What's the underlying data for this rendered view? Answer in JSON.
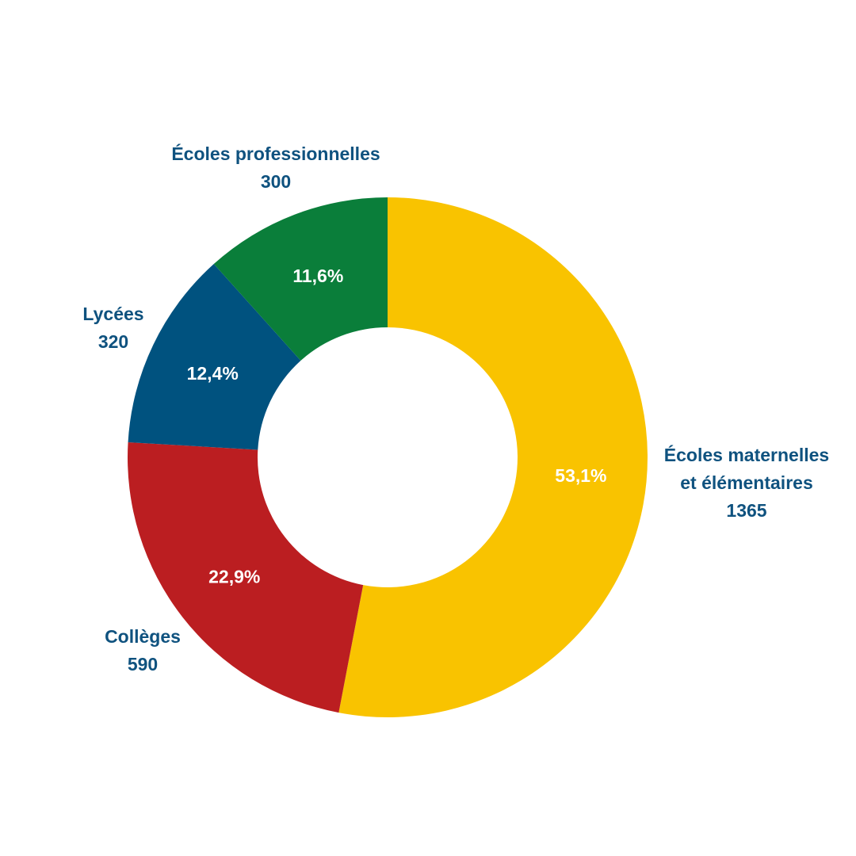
{
  "chart_data": {
    "type": "pie",
    "donut": true,
    "start_angle_deg": 0,
    "direction": "clockwise",
    "slices": [
      {
        "label_lines": [
          "Écoles maternelles",
          "et élémentaires"
        ],
        "value": 1365,
        "value_label": "1365",
        "percent_label": "53,1%",
        "color": "#f9c300"
      },
      {
        "label_lines": [
          "Collèges"
        ],
        "value": 590,
        "value_label": "590",
        "percent_label": "22,9%",
        "color": "#bb1e21"
      },
      {
        "label_lines": [
          "Lycées"
        ],
        "value": 320,
        "value_label": "320",
        "percent_label": "12,4%",
        "color": "#00527f"
      },
      {
        "label_lines": [
          "Écoles professionnelles"
        ],
        "value": 300,
        "value_label": "300",
        "percent_label": "11,6%",
        "color": "#0a7e3a"
      }
    ],
    "colors": {
      "label_text": "#0f527f",
      "percent_text": "#ffffff",
      "background": "#ffffff"
    }
  }
}
